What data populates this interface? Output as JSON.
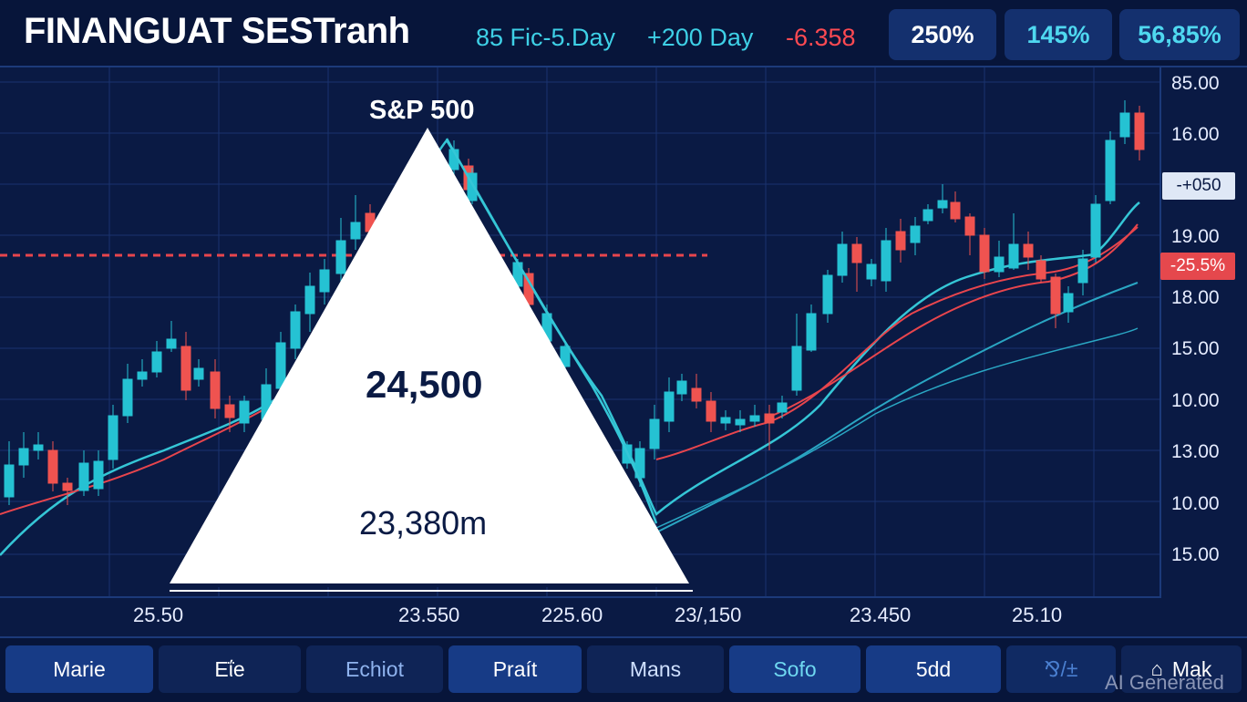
{
  "header": {
    "title": "FINANGUAT SESTranh",
    "metrics": [
      {
        "text": "85 Fic-5.Day",
        "color": "#3ed0e6"
      },
      {
        "text": "+200 Day",
        "color": "#3ed0e6"
      },
      {
        "text": "-6.358",
        "color": "#ff4a52"
      }
    ],
    "pills": [
      "250%",
      "145%",
      "56,85%"
    ]
  },
  "chart": {
    "index_name": "S&P 500",
    "main_value": "24,500",
    "sub_value": "23,380m",
    "y_labels": [
      "85.00",
      "16.00",
      "19.00",
      "18.00",
      "15.00",
      "10.00",
      "13.00",
      "10.00",
      "15.00"
    ],
    "price_tag": "-+050",
    "change_tag": "-25.5%",
    "x_labels": [
      "25.50",
      "23.550",
      "225.60",
      "23/,150",
      "23.450",
      "25.10"
    ],
    "colors": {
      "up": "#25c2d3",
      "down": "#ef5350",
      "ma_teal": "#35c6d6",
      "ma_red": "#e8454d"
    }
  },
  "tabs": [
    {
      "label": "Marie",
      "icon": ""
    },
    {
      "label": "Eΐe",
      "icon": ""
    },
    {
      "label": "Echiot",
      "icon": ""
    },
    {
      "label": "Praít",
      "icon": ""
    },
    {
      "label": "Mans",
      "icon": ""
    },
    {
      "label": "Sofo",
      "icon": ""
    },
    {
      "label": "5dd",
      "icon": ""
    },
    {
      "label": "⅋/±",
      "icon": ""
    },
    {
      "label": "Mak",
      "icon": "home-icon"
    }
  ],
  "watermark": "AI Generated"
}
